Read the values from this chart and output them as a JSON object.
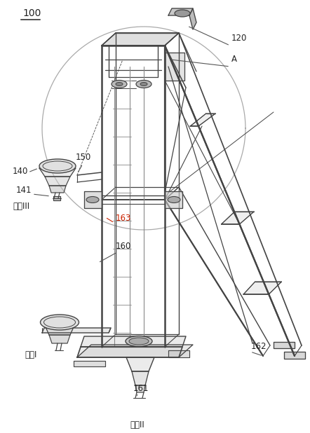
{
  "bg_color": "#ffffff",
  "lc": "#444444",
  "lc_light": "#888888",
  "lc_fill": "#cccccc",
  "lc_fill2": "#e0e0e0",
  "red_text": "#cc2200",
  "label_100": "100",
  "label_120": "120",
  "label_A": "A",
  "label_140": "140",
  "label_150": "150",
  "label_141": "141",
  "label_workIII": "工位III",
  "label_163": "163",
  "label_160": "160",
  "label_workI": "工位I",
  "label_workII": "工位II",
  "label_161": "161",
  "label_162": "162",
  "figsize": [
    4.42,
    6.18
  ],
  "dpi": 100
}
